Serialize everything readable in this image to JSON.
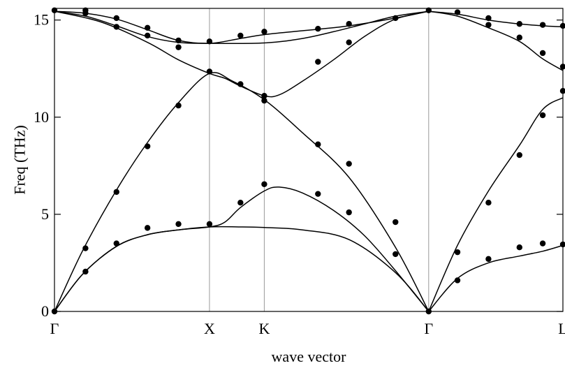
{
  "chart_data": {
    "type": "line",
    "title": "",
    "xlabel": "wave vector",
    "ylabel": "Freq  (THz)",
    "ylim": [
      0,
      15.6
    ],
    "yticks": [
      0,
      5,
      10,
      15
    ],
    "kpoints": [
      {
        "label": "Γ",
        "x": 0.0
      },
      {
        "label": "X",
        "x": 1.0
      },
      {
        "label": "K",
        "x": 1.3536
      },
      {
        "label": "Γ",
        "x": 2.4142
      },
      {
        "label": "L",
        "x": 3.2802
      }
    ],
    "grid": "vertical lines at X, K and Γ",
    "series": [
      {
        "values": [
          [
            0,
            0
          ],
          [
            0.18,
            1.9
          ],
          [
            0.4,
            3.35
          ],
          [
            0.6,
            3.95
          ],
          [
            0.8,
            4.2
          ],
          [
            1.0,
            4.35
          ],
          [
            1.2,
            4.35
          ],
          [
            1.3536,
            4.32
          ],
          [
            1.6,
            4.2
          ],
          [
            1.9,
            3.7
          ],
          [
            2.2,
            2.0
          ],
          [
            2.4142,
            0
          ]
        ]
      },
      {
        "values": [
          [
            0,
            0
          ],
          [
            0.18,
            1.9
          ],
          [
            0.4,
            3.35
          ],
          [
            0.6,
            3.95
          ],
          [
            0.8,
            4.2
          ],
          [
            1.0,
            4.35
          ],
          [
            1.1,
            4.6
          ],
          [
            1.2,
            5.35
          ],
          [
            1.3536,
            6.2
          ],
          [
            1.45,
            6.4
          ],
          [
            1.6,
            6.1
          ],
          [
            1.8,
            5.2
          ],
          [
            2.0,
            3.9
          ],
          [
            2.2,
            2.1
          ],
          [
            2.4142,
            0
          ]
        ]
      },
      {
        "values": [
          [
            0,
            0
          ],
          [
            0.18,
            3.1
          ],
          [
            0.4,
            6.25
          ],
          [
            0.6,
            8.7
          ],
          [
            0.8,
            10.75
          ],
          [
            1.0,
            12.25
          ],
          [
            1.15,
            11.85
          ],
          [
            1.3536,
            10.9
          ],
          [
            1.6,
            9.2
          ],
          [
            1.9,
            6.9
          ],
          [
            2.2,
            3.3
          ],
          [
            2.4142,
            0
          ]
        ]
      },
      {
        "values": [
          [
            0,
            15.45
          ],
          [
            0.2,
            15.2
          ],
          [
            0.4,
            14.7
          ],
          [
            0.6,
            14.15
          ],
          [
            0.8,
            13.85
          ],
          [
            1.0,
            13.8
          ],
          [
            1.3536,
            13.82
          ],
          [
            1.6,
            14.05
          ],
          [
            1.8,
            14.4
          ],
          [
            2.0,
            14.8
          ],
          [
            2.2,
            15.2
          ],
          [
            2.4142,
            15.45
          ]
        ]
      },
      {
        "values": [
          [
            0,
            15.45
          ],
          [
            0.3,
            14.9
          ],
          [
            0.6,
            13.85
          ],
          [
            0.8,
            12.95
          ],
          [
            1.0,
            12.25
          ],
          [
            1.1,
            12.0
          ],
          [
            1.2,
            11.6
          ],
          [
            1.3536,
            11.1
          ],
          [
            1.45,
            11.15
          ],
          [
            1.6,
            11.85
          ],
          [
            1.8,
            12.95
          ],
          [
            2.0,
            14.15
          ],
          [
            2.2,
            15.05
          ],
          [
            2.4142,
            15.45
          ]
        ]
      },
      {
        "values": [
          [
            0,
            15.45
          ],
          [
            0.2,
            15.35
          ],
          [
            0.4,
            15.05
          ],
          [
            0.6,
            14.5
          ],
          [
            0.8,
            13.95
          ],
          [
            1.0,
            13.8
          ],
          [
            1.2,
            14.05
          ],
          [
            1.3536,
            14.25
          ],
          [
            1.6,
            14.45
          ],
          [
            1.9,
            14.7
          ],
          [
            2.2,
            15.1
          ],
          [
            2.4142,
            15.45
          ]
        ]
      },
      {
        "values": [
          [
            2.4142,
            0
          ],
          [
            2.6,
            3.4
          ],
          [
            2.8,
            6.2
          ],
          [
            3.0,
            8.55
          ],
          [
            3.15,
            10.4
          ],
          [
            3.2802,
            11.0
          ]
        ]
      },
      {
        "values": [
          [
            2.4142,
            0
          ],
          [
            2.6,
            1.7
          ],
          [
            2.8,
            2.5
          ],
          [
            3.0,
            2.85
          ],
          [
            3.15,
            3.1
          ],
          [
            3.2802,
            3.4
          ]
        ]
      },
      {
        "values": [
          [
            2.4142,
            15.45
          ],
          [
            2.6,
            15.2
          ],
          [
            2.8,
            14.6
          ],
          [
            3.0,
            13.9
          ],
          [
            3.15,
            13.0
          ],
          [
            3.2802,
            12.4
          ]
        ]
      },
      {
        "values": [
          [
            2.4142,
            15.45
          ],
          [
            2.6,
            15.3
          ],
          [
            2.8,
            15.0
          ],
          [
            3.0,
            14.8
          ],
          [
            3.15,
            14.7
          ],
          [
            3.2802,
            14.65
          ]
        ]
      }
    ],
    "points": [
      [
        0,
        0
      ],
      [
        0,
        15.5
      ],
      [
        0.2,
        2.05
      ],
      [
        0.2,
        3.25
      ],
      [
        0.2,
        15.5
      ],
      [
        0.2,
        15.35
      ],
      [
        0.4,
        3.5
      ],
      [
        0.4,
        6.15
      ],
      [
        0.4,
        15.1
      ],
      [
        0.4,
        14.65
      ],
      [
        0.6,
        4.3
      ],
      [
        0.6,
        8.5
      ],
      [
        0.6,
        14.6
      ],
      [
        0.6,
        14.2
      ],
      [
        0.8,
        4.5
      ],
      [
        0.8,
        10.6
      ],
      [
        0.8,
        13.95
      ],
      [
        0.8,
        13.6
      ],
      [
        1.0,
        4.5
      ],
      [
        1.0,
        12.35
      ],
      [
        1.0,
        13.9
      ],
      [
        1.2,
        5.6
      ],
      [
        1.2,
        11.7
      ],
      [
        1.2,
        14.2
      ],
      [
        1.3536,
        6.55
      ],
      [
        1.3536,
        10.85
      ],
      [
        1.3536,
        11.1
      ],
      [
        1.3536,
        14.4
      ],
      [
        1.7,
        6.05
      ],
      [
        1.7,
        8.6
      ],
      [
        1.7,
        12.85
      ],
      [
        1.7,
        14.55
      ],
      [
        1.9,
        5.1
      ],
      [
        1.9,
        7.6
      ],
      [
        1.9,
        13.85
      ],
      [
        1.9,
        14.8
      ],
      [
        2.2,
        2.95
      ],
      [
        2.2,
        4.6
      ],
      [
        2.2,
        15.1
      ],
      [
        2.4142,
        0
      ],
      [
        2.4142,
        15.5
      ],
      [
        2.6,
        1.6
      ],
      [
        2.6,
        3.05
      ],
      [
        2.6,
        15.4
      ],
      [
        2.8,
        2.7
      ],
      [
        2.8,
        5.6
      ],
      [
        2.8,
        14.75
      ],
      [
        2.8,
        15.1
      ],
      [
        3.0,
        3.3
      ],
      [
        3.0,
        8.05
      ],
      [
        3.0,
        14.1
      ],
      [
        3.0,
        14.8
      ],
      [
        3.15,
        3.5
      ],
      [
        3.15,
        10.1
      ],
      [
        3.15,
        13.3
      ],
      [
        3.15,
        14.75
      ],
      [
        3.2802,
        3.45
      ],
      [
        3.2802,
        11.35
      ],
      [
        3.2802,
        12.6
      ],
      [
        3.2802,
        14.7
      ]
    ]
  }
}
